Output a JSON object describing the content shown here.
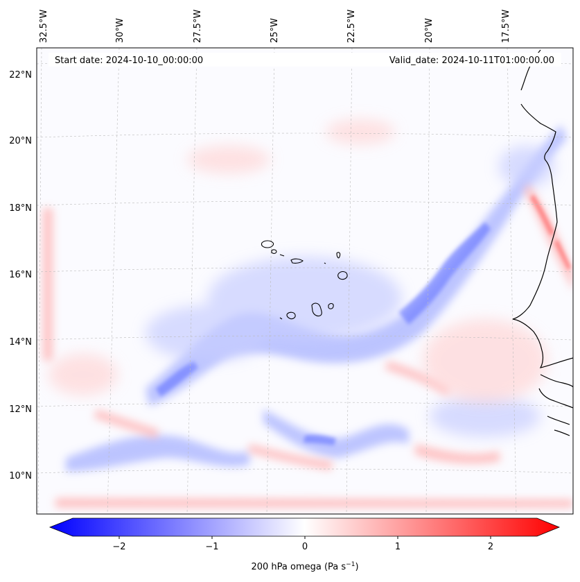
{
  "map": {
    "header": {
      "start_date": "Start date: 2024-10-10_00:00:00",
      "valid_date": "Valid_date: 2024-10-11T01:00:00.00"
    },
    "lon_labels": [
      "32.5°W",
      "30°W",
      "27.5°W",
      "25°W",
      "22.5°W",
      "20°W",
      "17.5°W"
    ],
    "lat_labels": [
      "22°N",
      "20°N",
      "18°N",
      "16°N",
      "14°N",
      "12°N",
      "10°N"
    ],
    "features": [
      "Cabo Verde islands",
      "West African coastline"
    ],
    "field": "200 hPa omega"
  },
  "colorbar": {
    "ticks": [
      "−2",
      "−1",
      "0",
      "1",
      "2"
    ],
    "label_main": "200 hPa omega (Pa s",
    "label_sup": "−1",
    "label_close": ")",
    "colors": {
      "negative": "#0000ff",
      "zero": "#ffffff",
      "positive": "#ff0000"
    },
    "range": [
      -2.6,
      2.6
    ]
  }
}
